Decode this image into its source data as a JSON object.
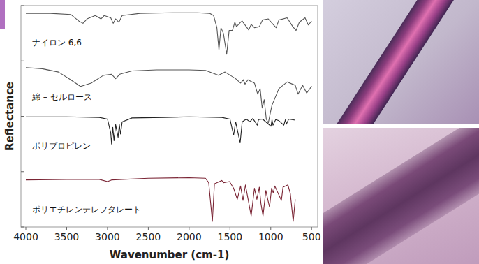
{
  "chart_data": {
    "type": "line",
    "x_label": "Wavenumber (cm-1)",
    "y_label": "Reflectance",
    "xlim": [
      4060,
      425
    ],
    "xticks": [
      4000,
      3500,
      3000,
      2500,
      2000,
      1500,
      1000,
      500
    ],
    "ylim": [
      0,
      4
    ],
    "yticks": [
      0,
      1,
      2,
      3,
      4
    ],
    "tick_labels": "x",
    "grid": false,
    "series": [
      {
        "name": "ナイロン 6,6",
        "color": "#555555",
        "x": [
          4000,
          3700,
          3450,
          3350,
          3300,
          3250,
          3150,
          3080,
          3040,
          2960,
          2930,
          2900,
          2860,
          2820,
          2600,
          2200,
          1900,
          1750,
          1700,
          1660,
          1635,
          1610,
          1580,
          1540,
          1510,
          1470,
          1440,
          1420,
          1370,
          1350,
          1270,
          1240,
          1200,
          1140,
          1100,
          1030,
          935,
          900,
          800,
          730,
          690,
          650,
          580,
          540,
          500
        ],
        "values": [
          3.86,
          3.86,
          3.84,
          3.72,
          3.68,
          3.76,
          3.82,
          3.76,
          3.82,
          3.78,
          3.68,
          3.76,
          3.7,
          3.82,
          3.86,
          3.87,
          3.87,
          3.86,
          3.82,
          3.6,
          3.2,
          3.6,
          3.5,
          3.12,
          3.55,
          3.55,
          3.7,
          3.62,
          3.7,
          3.72,
          3.56,
          3.66,
          3.6,
          3.62,
          3.74,
          3.76,
          3.6,
          3.74,
          3.78,
          3.62,
          3.55,
          3.7,
          3.78,
          3.65,
          3.72
        ]
      },
      {
        "name": "綿 – セルロース",
        "color": "#555555",
        "x": [
          4000,
          3800,
          3600,
          3450,
          3330,
          3200,
          3050,
          2950,
          2900,
          2850,
          2700,
          2400,
          2000,
          1800,
          1640,
          1560,
          1430,
          1370,
          1335,
          1315,
          1280,
          1200,
          1160,
          1130,
          1105,
          1080,
          1055,
          1030,
          1000,
          985,
          900,
          800,
          700,
          665,
          610,
          560,
          520,
          500
        ],
        "values": [
          2.88,
          2.86,
          2.8,
          2.66,
          2.54,
          2.6,
          2.74,
          2.76,
          2.68,
          2.76,
          2.82,
          2.84,
          2.84,
          2.83,
          2.74,
          2.8,
          2.68,
          2.6,
          2.66,
          2.58,
          2.66,
          2.6,
          2.4,
          2.5,
          2.15,
          2.3,
          1.95,
          1.88,
          2.1,
          2.2,
          2.5,
          2.62,
          2.56,
          2.4,
          2.56,
          2.42,
          2.5,
          2.55
        ]
      },
      {
        "name": "ポリプロピレン",
        "color": "#222222",
        "x": [
          4000,
          3500,
          3100,
          3000,
          2960,
          2950,
          2935,
          2920,
          2900,
          2870,
          2855,
          2840,
          2820,
          2700,
          2300,
          2000,
          1600,
          1500,
          1455,
          1430,
          1375,
          1350,
          1300,
          1255,
          1220,
          1165,
          1150,
          1100,
          997,
          985,
          973,
          940,
          900,
          840,
          820,
          808,
          780,
          700
        ],
        "values": [
          1.99,
          1.99,
          1.98,
          1.95,
          1.7,
          1.5,
          1.8,
          1.56,
          1.85,
          1.62,
          1.85,
          1.68,
          1.9,
          1.97,
          1.98,
          1.99,
          1.98,
          1.95,
          1.66,
          1.9,
          1.52,
          1.9,
          1.95,
          1.9,
          1.96,
          1.84,
          1.94,
          1.95,
          1.82,
          1.94,
          1.84,
          1.94,
          1.92,
          1.84,
          1.94,
          1.86,
          1.95,
          1.93
        ]
      },
      {
        "name": "ポリエチレンテレフタレート",
        "color": "#7a2434",
        "x": [
          4000,
          3500,
          3100,
          3000,
          2950,
          2500,
          2000,
          1800,
          1760,
          1715,
          1690,
          1600,
          1580,
          1505,
          1455,
          1410,
          1370,
          1340,
          1310,
          1240,
          1200,
          1170,
          1140,
          1120,
          1095,
          1060,
          1040,
          1015,
          990,
          970,
          950,
          870,
          850,
          790,
          760,
          725,
          700
        ],
        "values": [
          0.85,
          0.86,
          0.86,
          0.82,
          0.85,
          0.88,
          0.89,
          0.88,
          0.8,
          0.1,
          0.78,
          0.84,
          0.8,
          0.82,
          0.7,
          0.5,
          0.74,
          0.48,
          0.76,
          0.2,
          0.7,
          0.5,
          0.72,
          0.42,
          0.2,
          0.66,
          0.52,
          0.36,
          0.7,
          0.62,
          0.74,
          0.48,
          0.72,
          0.76,
          0.6,
          0.1,
          0.5
        ]
      }
    ]
  }
}
